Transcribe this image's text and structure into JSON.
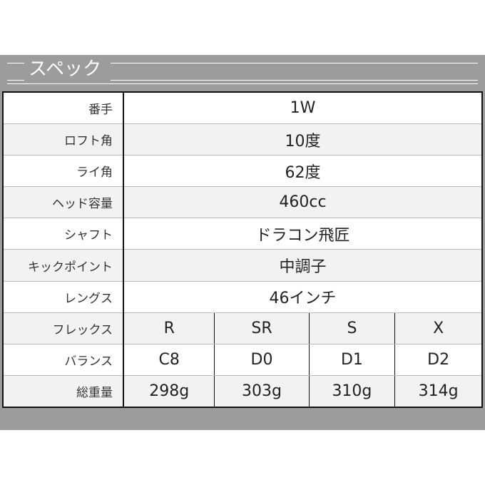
{
  "section_title": "スペック",
  "rows": [
    {
      "label": "番手",
      "value": "1W"
    },
    {
      "label": "ロフト角",
      "value": "10度"
    },
    {
      "label": "ライ角",
      "value": "62度"
    },
    {
      "label": "ヘッド容量",
      "value": "460cc"
    },
    {
      "label": "シャフト",
      "value": "ドラコン飛匠"
    },
    {
      "label": "キックポイント",
      "value": "中調子"
    },
    {
      "label": "レングス",
      "value": "46インチ"
    }
  ],
  "multi_rows": [
    {
      "label": "フレックス",
      "values": [
        "R",
        "SR",
        "S",
        "X"
      ]
    },
    {
      "label": "バランス",
      "values": [
        "C8",
        "D0",
        "D1",
        "D2"
      ]
    },
    {
      "label": "総重量",
      "values": [
        "298g",
        "303g",
        "310g",
        "314g"
      ]
    }
  ]
}
